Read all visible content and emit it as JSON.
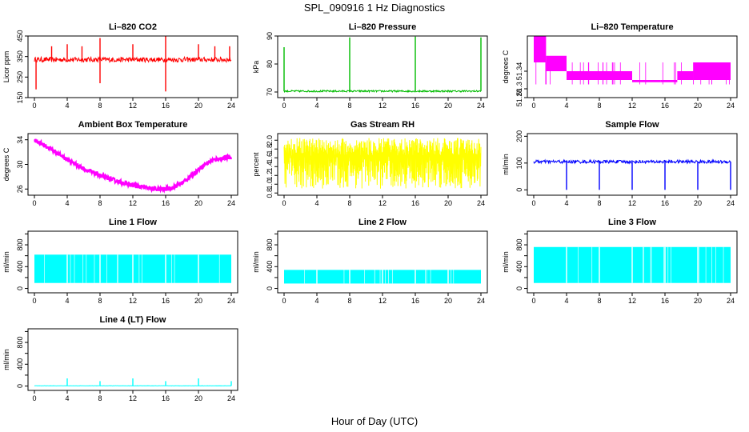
{
  "title": "SPL_090916  1 Hz Diagnostics",
  "xlabel": "Hour of Day (UTC)",
  "chart_data": [
    {
      "id": "co2",
      "type": "line",
      "title": "Li–820 CO2",
      "ylabel": "Licor ppm",
      "color": "#ff0000",
      "xlim": [
        0,
        24
      ],
      "ylim": [
        150,
        450
      ],
      "yticks": [
        150,
        250,
        350,
        450
      ],
      "xticks": [
        0,
        4,
        8,
        12,
        16,
        20,
        24
      ],
      "baseline": 335,
      "noise": 12,
      "spikes": [
        [
          0.2,
          190
        ],
        [
          2.1,
          400
        ],
        [
          4,
          410
        ],
        [
          5.8,
          400
        ],
        [
          8,
          220
        ],
        [
          8,
          440
        ],
        [
          12,
          410
        ],
        [
          16,
          180
        ],
        [
          16,
          450
        ],
        [
          20,
          410
        ],
        [
          22,
          400
        ],
        [
          23.8,
          400
        ]
      ]
    },
    {
      "id": "pressure",
      "type": "line",
      "title": "Li–820 Pressure",
      "ylabel": "kPa",
      "color": "#00bb00",
      "xlim": [
        0,
        24
      ],
      "ylim": [
        68,
        90
      ],
      "yticks": [
        70,
        80,
        90
      ],
      "xticks": [
        0,
        4,
        8,
        12,
        16,
        20,
        24
      ],
      "baseline": 70.3,
      "noise": 0.3,
      "spikes": [
        [
          0,
          86
        ],
        [
          8,
          89.5
        ],
        [
          16,
          89.8
        ],
        [
          24,
          89.5
        ]
      ]
    },
    {
      "id": "temperature",
      "type": "band",
      "title": "Li–820 Temperature",
      "ylabel": "degrees C",
      "color": "#ff00ff",
      "xlim": [
        0,
        24
      ],
      "ylim": [
        51.28,
        51.42
      ],
      "yticks": [
        51.28,
        51.3,
        51.34
      ],
      "xticks": [
        0,
        4,
        8,
        12,
        16,
        20,
        24
      ],
      "segments": [
        [
          0,
          1.5,
          51.36,
          51.42
        ],
        [
          1.5,
          4,
          51.34,
          51.375
        ],
        [
          4,
          12,
          51.32,
          51.34
        ],
        [
          12,
          15.5,
          51.315,
          51.32
        ],
        [
          15.5,
          17.5,
          51.315,
          51.32
        ],
        [
          17.5,
          19.5,
          51.32,
          51.34
        ],
        [
          19.5,
          24,
          51.32,
          51.36
        ]
      ]
    },
    {
      "id": "ambient",
      "type": "curve",
      "title": "Ambient Box Temperature",
      "ylabel": "degrees C",
      "color": "#ff00ff",
      "xlim": [
        0,
        24
      ],
      "ylim": [
        25,
        35
      ],
      "yticks": [
        26,
        30,
        34
      ],
      "xticks": [
        0,
        4,
        8,
        12,
        16,
        20,
        24
      ],
      "x": [
        0,
        2,
        4,
        6,
        8,
        10,
        12,
        14,
        15,
        16,
        17,
        18,
        19,
        20,
        21,
        22,
        23,
        24
      ],
      "y": [
        34,
        32.5,
        30.8,
        29.3,
        28.2,
        27.3,
        26.6,
        26.1,
        26,
        26,
        26.3,
        27,
        28,
        29.2,
        30.2,
        30.8,
        31,
        31.2
      ],
      "noise": 0.35
    },
    {
      "id": "rh",
      "type": "noise",
      "title": "Gas Stream RH",
      "ylabel": "percent",
      "color": "#ffff00",
      "xlim": [
        0,
        24
      ],
      "ylim": [
        0.75,
        2.15
      ],
      "yticks": [
        0.8,
        1.0,
        1.2,
        1.4,
        1.6,
        1.8,
        2.0
      ],
      "yticklabels": [
        "0.8",
        "1.0",
        "1.2",
        "1.4",
        "1.6",
        "1.8",
        "2.0"
      ],
      "xticks": [
        0,
        4,
        8,
        12,
        16,
        20,
        24
      ],
      "low": 0.9,
      "high": 2.05,
      "center": 1.65
    },
    {
      "id": "sample",
      "type": "line",
      "title": "Sample Flow",
      "ylabel": "ml/min",
      "color": "#0000ff",
      "xlim": [
        0,
        24
      ],
      "ylim": [
        -20,
        210
      ],
      "yticks": [
        0,
        100,
        200
      ],
      "xticks": [
        0,
        4,
        8,
        12,
        16,
        20,
        24
      ],
      "baseline": 105,
      "noise": 6,
      "spikes": [
        [
          4,
          0
        ],
        [
          8,
          0
        ],
        [
          12,
          0
        ],
        [
          16,
          0
        ],
        [
          20,
          0
        ],
        [
          24,
          0
        ]
      ]
    },
    {
      "id": "line1",
      "type": "block",
      "title": "Line 1 Flow",
      "ylabel": "ml/min",
      "color": "#00ffff",
      "xlim": [
        0,
        24
      ],
      "ylim": [
        -80,
        1050
      ],
      "yticks": [
        0,
        200,
        400,
        600,
        800,
        1000
      ],
      "yticklabels": [
        "0",
        "",
        "400",
        "",
        "800",
        ""
      ],
      "xticks": [
        0,
        4,
        8,
        12,
        16,
        20,
        24
      ],
      "low": 100,
      "high": 620,
      "gaps": [
        4,
        8,
        12,
        16,
        20
      ],
      "end": 24
    },
    {
      "id": "line2",
      "type": "block",
      "title": "Line 2 Flow",
      "ylabel": "ml/min",
      "color": "#00ffff",
      "xlim": [
        0,
        24
      ],
      "ylim": [
        -80,
        1050
      ],
      "yticks": [
        0,
        200,
        400,
        600,
        800,
        1000
      ],
      "yticklabels": [
        "0",
        "",
        "400",
        "",
        "800",
        ""
      ],
      "xticks": [
        0,
        4,
        8,
        12,
        16,
        20,
        24
      ],
      "low": 90,
      "high": 340,
      "gaps": [
        4,
        8,
        12,
        16,
        20
      ],
      "end": 24
    },
    {
      "id": "line3",
      "type": "block",
      "title": "Line 3 Flow",
      "ylabel": "ml/min",
      "color": "#00ffff",
      "xlim": [
        0,
        24
      ],
      "ylim": [
        -80,
        1050
      ],
      "yticks": [
        0,
        200,
        400,
        600,
        800,
        1000
      ],
      "yticklabels": [
        "0",
        "",
        "400",
        "",
        "800",
        ""
      ],
      "xticks": [
        0,
        4,
        8,
        12,
        16,
        20,
        24
      ],
      "low": 100,
      "high": 760,
      "gaps": [
        4,
        8,
        12,
        16,
        20
      ],
      "end": 24
    },
    {
      "id": "line4",
      "type": "line",
      "title": "Line 4 (LT) Flow",
      "ylabel": "ml/min",
      "color": "#00ffff",
      "xlim": [
        0,
        24
      ],
      "ylim": [
        -80,
        1050
      ],
      "yticks": [
        0,
        200,
        400,
        600,
        800,
        1000
      ],
      "yticklabels": [
        "0",
        "",
        "400",
        "",
        "800",
        ""
      ],
      "xticks": [
        0,
        4,
        8,
        12,
        16,
        20,
        24
      ],
      "baseline": 5,
      "noise": 3,
      "spikes": [
        [
          4,
          140
        ],
        [
          8,
          90
        ],
        [
          12,
          140
        ],
        [
          16,
          90
        ],
        [
          20,
          140
        ],
        [
          24,
          90
        ]
      ]
    }
  ]
}
